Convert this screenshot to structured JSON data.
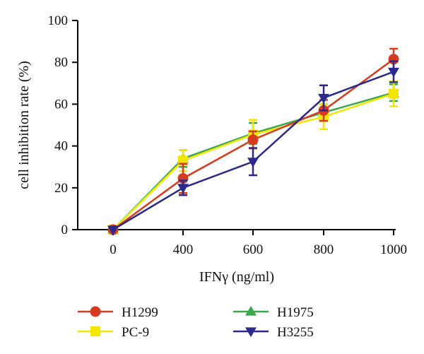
{
  "chart_data": {
    "type": "line",
    "xlabel": "IFNγ (ng/ml)",
    "ylabel": "cell inhibition rate (%)",
    "ylim": [
      0,
      100
    ],
    "yticks": [
      0,
      20,
      40,
      60,
      80,
      100
    ],
    "categories": [
      "0",
      "400",
      "600",
      "800",
      "1000"
    ],
    "legend_position": "bottom",
    "series": [
      {
        "name": "H1299",
        "color": "#d63a1f",
        "marker": "circle",
        "values": [
          0,
          24.5,
          43,
          57,
          81.5
        ],
        "errors": [
          0,
          7,
          4,
          5,
          5
        ]
      },
      {
        "name": "H1975",
        "color": "#3aa84a",
        "marker": "triangle-up",
        "values": [
          0,
          34,
          46,
          56,
          65.5
        ],
        "errors": [
          0,
          4,
          5,
          4,
          4
        ]
      },
      {
        "name": "PC-9",
        "color": "#f2e600",
        "marker": "square",
        "values": [
          0,
          33,
          45.5,
          54,
          65
        ],
        "errors": [
          0,
          5,
          7,
          6,
          6
        ]
      },
      {
        "name": "H3255",
        "color": "#2b2a8c",
        "marker": "triangle-down",
        "values": [
          0,
          20,
          32.5,
          63,
          75.5
        ],
        "errors": [
          0,
          3.5,
          6.5,
          6,
          5
        ]
      }
    ]
  }
}
